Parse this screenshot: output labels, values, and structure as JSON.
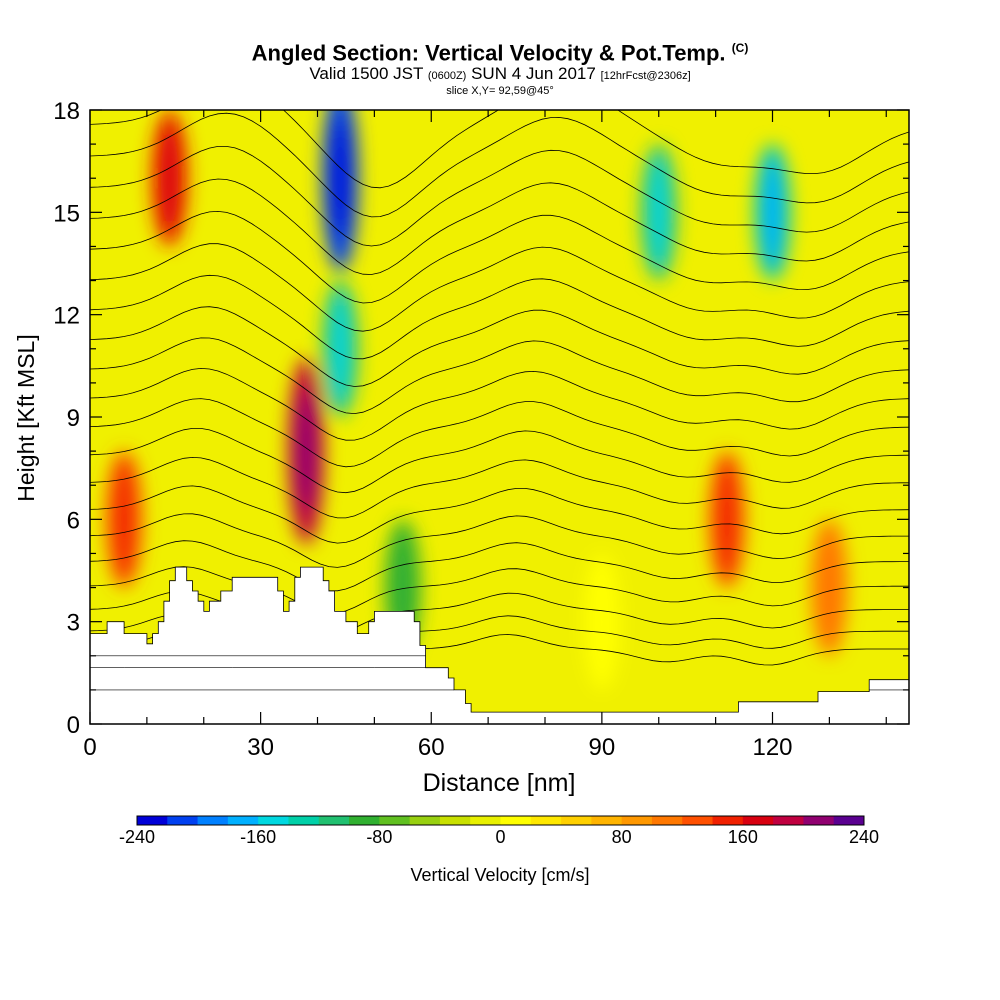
{
  "title": {
    "main": "Angled Section: Vertical Velocity & Pot.Temp.",
    "copyright": "(C)",
    "valid_prefix": "Valid 1500 JST",
    "valid_zulu": "(0600Z)",
    "valid_date": "SUN 4 Jun 2017",
    "forecast": "[12hrFcst@2306z]",
    "slice": "slice X,Y= 92,59@45°"
  },
  "chart_data": {
    "type": "heatmap",
    "xlabel": "Distance [nm]",
    "ylabel": "Height [Kft MSL]",
    "xlim": [
      0,
      144
    ],
    "ylim": [
      0,
      18
    ],
    "x_ticks": [
      0,
      30,
      60,
      90,
      120
    ],
    "y_ticks": [
      0,
      3,
      6,
      9,
      12,
      15,
      18
    ],
    "terrain_top_kft": [
      [
        0,
        2.65
      ],
      [
        3,
        2.65
      ],
      [
        3,
        3.0
      ],
      [
        6,
        3.0
      ],
      [
        6,
        2.65
      ],
      [
        8,
        2.65
      ],
      [
        8,
        2.65
      ],
      [
        10,
        2.65
      ],
      [
        10,
        2.35
      ],
      [
        11,
        2.35
      ],
      [
        11,
        2.65
      ],
      [
        12,
        2.65
      ],
      [
        12,
        3.0
      ],
      [
        13,
        3.0
      ],
      [
        13,
        3.6
      ],
      [
        14,
        3.6
      ],
      [
        14,
        4.2
      ],
      [
        15,
        4.2
      ],
      [
        15,
        4.6
      ],
      [
        17,
        4.6
      ],
      [
        17,
        4.2
      ],
      [
        18,
        4.2
      ],
      [
        18,
        3.9
      ],
      [
        19,
        3.9
      ],
      [
        19,
        3.6
      ],
      [
        20,
        3.6
      ],
      [
        20,
        3.3
      ],
      [
        21,
        3.3
      ],
      [
        21,
        3.6
      ],
      [
        23,
        3.6
      ],
      [
        23,
        3.9
      ],
      [
        25,
        3.9
      ],
      [
        25,
        4.3
      ],
      [
        33,
        4.3
      ],
      [
        33,
        3.9
      ],
      [
        34,
        3.9
      ],
      [
        34,
        3.3
      ],
      [
        35,
        3.3
      ],
      [
        35,
        3.6
      ],
      [
        36,
        3.6
      ],
      [
        36,
        4.3
      ],
      [
        37,
        4.3
      ],
      [
        37,
        4.6
      ],
      [
        41,
        4.6
      ],
      [
        41,
        4.2
      ],
      [
        42,
        4.2
      ],
      [
        42,
        3.9
      ],
      [
        43,
        3.9
      ],
      [
        43,
        3.3
      ],
      [
        45,
        3.3
      ],
      [
        45,
        3.0
      ],
      [
        47,
        3.0
      ],
      [
        47,
        2.65
      ],
      [
        49,
        2.65
      ],
      [
        49,
        3.0
      ],
      [
        50,
        3.0
      ],
      [
        50,
        3.3
      ],
      [
        57,
        3.3
      ],
      [
        57,
        3.0
      ],
      [
        58,
        3.0
      ],
      [
        58,
        2.3
      ],
      [
        59,
        2.3
      ],
      [
        59,
        1.65
      ],
      [
        63,
        1.65
      ],
      [
        63,
        1.35
      ],
      [
        64,
        1.35
      ],
      [
        64,
        1.0
      ],
      [
        66,
        1.0
      ],
      [
        66,
        0.6
      ],
      [
        67,
        0.6
      ],
      [
        67,
        0.35
      ],
      [
        114,
        0.35
      ],
      [
        114,
        0.65
      ],
      [
        128,
        0.65
      ],
      [
        128,
        0.95
      ],
      [
        137,
        0.95
      ],
      [
        137,
        1.3
      ],
      [
        144,
        1.3
      ]
    ],
    "vertical_velocity_features_cm_s": [
      {
        "x_nm": 14,
        "y_kft": 16,
        "value": 140
      },
      {
        "x_nm": 6,
        "y_kft": 6,
        "value": 120
      },
      {
        "x_nm": 38,
        "y_kft": 8,
        "value": 180
      },
      {
        "x_nm": 44,
        "y_kft": 16,
        "value": -220
      },
      {
        "x_nm": 44,
        "y_kft": 11,
        "value": -120
      },
      {
        "x_nm": 55,
        "y_kft": 4,
        "value": -100
      },
      {
        "x_nm": 100,
        "y_kft": 15,
        "value": -120
      },
      {
        "x_nm": 120,
        "y_kft": 15,
        "value": -140
      },
      {
        "x_nm": 112,
        "y_kft": 6,
        "value": 130
      },
      {
        "x_nm": 130,
        "y_kft": 4,
        "value": 100
      },
      {
        "x_nm": 90,
        "y_kft": 3,
        "value": 10
      }
    ],
    "contour_variable": "Potential Temperature",
    "colorbar": {
      "label": "Vertical Velocity [cm/s]",
      "min": -240,
      "max": 240,
      "tick_labels": [
        "-240",
        "-160",
        "-80",
        "0",
        "80",
        "160",
        "240"
      ],
      "colors": [
        "#0000d8",
        "#0040f0",
        "#0080ff",
        "#00b0ff",
        "#00d8e0",
        "#00d0a8",
        "#20c070",
        "#30b030",
        "#60c020",
        "#98d010",
        "#c8e000",
        "#e8f000",
        "#ffff00",
        "#ffe800",
        "#ffd000",
        "#ffb400",
        "#ff9800",
        "#ff7800",
        "#ff5000",
        "#f02000",
        "#d80010",
        "#c00040",
        "#900070",
        "#5a0090"
      ]
    }
  }
}
